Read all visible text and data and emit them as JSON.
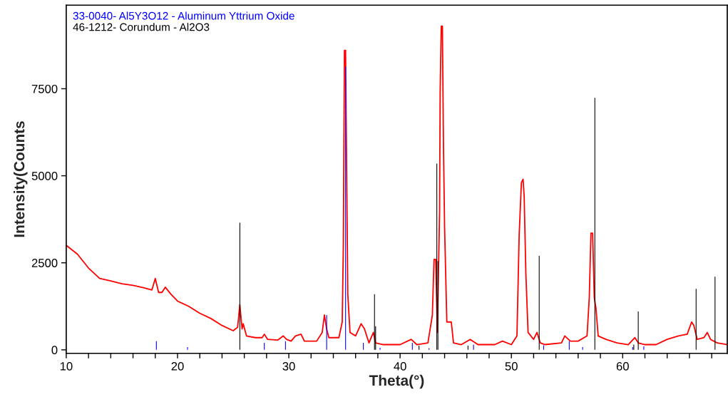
{
  "chart_data": {
    "type": "line",
    "xlabel": "Theta(°)",
    "ylabel": "Intensity(Counts",
    "xlim": [
      10,
      69.4
    ],
    "ylim": [
      -100,
      9900
    ],
    "xticks": [
      10,
      {
        "value": 12,
        "label": null
      },
      {
        "value": 14,
        "label": null
      },
      {
        "value": 16,
        "label": null
      },
      {
        "value": 18,
        "label": null
      },
      20,
      {
        "value": 22,
        "label": null
      },
      {
        "value": 24,
        "label": null
      },
      {
        "value": 26,
        "label": null
      },
      {
        "value": 28,
        "label": null
      },
      30,
      {
        "value": 32,
        "label": null
      },
      {
        "value": 34,
        "label": null
      },
      {
        "value": 36,
        "label": null
      },
      {
        "value": 38,
        "label": null
      },
      40,
      {
        "value": 42,
        "label": null
      },
      {
        "value": 44,
        "label": null
      },
      {
        "value": 46,
        "label": null
      },
      {
        "value": 48,
        "label": null
      },
      50,
      {
        "value": 52,
        "label": null
      },
      {
        "value": 54,
        "label": null
      },
      {
        "value": 56,
        "label": null
      },
      {
        "value": 58,
        "label": null
      },
      60,
      {
        "value": 62,
        "label": null
      },
      {
        "value": 64,
        "label": null
      },
      {
        "value": 66,
        "label": null
      },
      {
        "value": 68,
        "label": null
      }
    ],
    "yticks": [
      0,
      2500,
      5000,
      7500
    ],
    "grid": false,
    "legend": "top left",
    "marker": "none",
    "line_style": "solid",
    "series": [
      {
        "color": "#ff0000",
        "x": [
          10,
          11,
          12,
          13,
          14,
          15,
          16,
          17,
          17.7,
          18.0,
          18.3,
          18.6,
          18.9,
          19.4,
          20,
          21,
          22,
          23,
          24,
          25,
          25.4,
          25.6,
          25.8,
          25.9,
          26.2,
          27,
          27.6,
          27.8,
          28.1,
          29,
          29.5,
          29.8,
          30.2,
          30.6,
          31.1,
          31.4,
          32.5,
          33.0,
          33.2,
          33.4,
          33.6,
          34.5,
          34.8,
          34.9,
          35.0,
          35.1,
          35.2,
          35.3,
          35.5,
          36.0,
          36.5,
          36.8,
          37.2,
          37.6,
          37.8,
          38.5,
          40,
          41.0,
          41.5,
          42.5,
          42.9,
          43.05,
          43.2,
          43.35,
          43.55,
          43.6,
          43.7,
          43.8,
          43.9,
          44.0,
          44.2,
          44.6,
          44.8,
          45.5,
          46.3,
          47,
          48.5,
          49.2,
          50,
          50.5,
          50.7,
          50.9,
          51.05,
          51.15,
          51.3,
          51.5,
          52.0,
          52.3,
          52.6,
          53,
          54.5,
          54.8,
          55.3,
          56,
          56.8,
          57.0,
          57.15,
          57.3,
          57.45,
          57.6,
          57.8,
          58.5,
          59.5,
          60.5,
          61.1,
          61.4,
          62,
          63,
          64,
          65,
          65.8,
          66.2,
          66.4,
          66.7,
          67.3,
          67.6,
          67.9,
          68.5,
          69.4
        ],
        "values": [
          3000,
          2750,
          2350,
          2050,
          1980,
          1900,
          1850,
          1780,
          1720,
          2050,
          1650,
          1650,
          1800,
          1600,
          1400,
          1250,
          1050,
          900,
          700,
          550,
          650,
          1300,
          600,
          750,
          400,
          350,
          350,
          450,
          300,
          280,
          400,
          300,
          250,
          400,
          450,
          250,
          250,
          500,
          1000,
          600,
          350,
          350,
          800,
          3000,
          8600,
          8600,
          5000,
          1600,
          500,
          400,
          750,
          600,
          200,
          500,
          200,
          150,
          150,
          300,
          150,
          200,
          1000,
          2600,
          2600,
          500,
          4000,
          7400,
          9300,
          9300,
          5800,
          3500,
          800,
          800,
          200,
          150,
          300,
          150,
          150,
          250,
          150,
          400,
          3300,
          4800,
          4900,
          4400,
          2200,
          500,
          300,
          500,
          200,
          150,
          200,
          400,
          250,
          250,
          400,
          1500,
          3350,
          3350,
          1500,
          1200,
          400,
          300,
          200,
          150,
          350,
          200,
          150,
          150,
          300,
          400,
          450,
          800,
          700,
          300,
          350,
          500,
          300,
          200,
          150
        ]
      },
      {
        "type": "bar",
        "name": "46-1212- Corundum - Al2O3",
        "color": "#000000",
        "x": [
          25.6,
          37.7,
          37.8,
          41.7,
          43.3,
          43.4,
          46.1,
          52.5,
          57.5,
          61.0,
          61.4,
          66.6,
          68.3
        ],
        "values": [
          3650,
          1600,
          680,
          120,
          5350,
          2550,
          120,
          2700,
          7240,
          150,
          1100,
          1750,
          2100
        ]
      },
      {
        "type": "bar",
        "name": "33-0040- Al5Y3O12 - Aluminum Yttrium Oxide",
        "color": "#0000ff",
        "x": [
          18.1,
          20.9,
          27.8,
          29.7,
          33.4,
          35.1,
          36.7,
          38.2,
          41.1,
          42.6,
          46.6,
          52.9,
          55.2,
          56.4,
          60.9,
          61.9
        ],
        "values": [
          250,
          80,
          200,
          250,
          1000,
          8130,
          200,
          60,
          200,
          50,
          150,
          130,
          250,
          80,
          80,
          100
        ]
      }
    ]
  }
}
